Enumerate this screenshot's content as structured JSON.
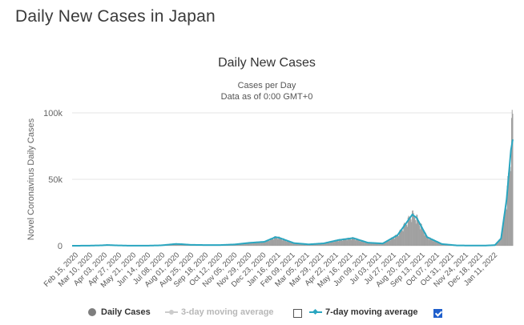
{
  "page": {
    "title": "Daily New Cases in Japan"
  },
  "chart_data": {
    "type": "bar",
    "title": "Daily New Cases",
    "subtitle_lines": [
      "Cases per Day",
      "Data as of 0:00 GMT+0"
    ],
    "ylabel": "Novel Coronavirus Daily Cases",
    "xlabel": "",
    "ylim": [
      0,
      100000
    ],
    "y_ticks": [
      0,
      50000,
      100000
    ],
    "y_tick_labels": [
      "0",
      "50k",
      "100k"
    ],
    "x_range": [
      "2020-02-15",
      "2022-01-30"
    ],
    "x_tick_labels": [
      "Feb 15, 2020",
      "Mar 10, 2020",
      "Apr 03, 2020",
      "Apr 27, 2020",
      "May 21, 2020",
      "Jun 14, 2020",
      "Jul 08, 2020",
      "Aug 01, 2020",
      "Aug 25, 2020",
      "Sep 18, 2020",
      "Oct 12, 2020",
      "Nov 05, 2020",
      "Nov 29, 2020",
      "Dec 23, 2020",
      "Jan 16, 2021",
      "Feb 09, 2021",
      "Mar 05, 2021",
      "Mar 29, 2021",
      "Apr 22, 2021",
      "May 16, 2021",
      "Jun 09, 2021",
      "Jul 03, 2021",
      "Jul 27, 2021",
      "Aug 20, 2021",
      "Sep 13, 2021",
      "Oct 07, 2021",
      "Oct 31, 2021",
      "Nov 24, 2021",
      "Dec 18, 2021",
      "Jan 11, 2022"
    ],
    "grid": true,
    "legend_position": "bottom",
    "legend": [
      {
        "label": "Daily Cases",
        "enabled": true
      },
      {
        "label": "3-day moving average",
        "enabled": false
      },
      {
        "label": "7-day moving average",
        "enabled": true
      }
    ],
    "colors": {
      "bars": "#a0a0a0",
      "ma7": "#2aa6c0",
      "ma3": "#cccccc",
      "grid": "#e6e6e6"
    },
    "series": [
      {
        "name": "Daily Cases",
        "type": "bar"
      },
      {
        "name": "7-day moving average",
        "type": "line",
        "points": [
          [
            "2020-02-15",
            10
          ],
          [
            "2020-03-10",
            60
          ],
          [
            "2020-04-03",
            300
          ],
          [
            "2020-04-12",
            580
          ],
          [
            "2020-04-27",
            280
          ],
          [
            "2020-05-21",
            40
          ],
          [
            "2020-06-14",
            60
          ],
          [
            "2020-07-08",
            300
          ],
          [
            "2020-08-01",
            1350
          ],
          [
            "2020-08-10",
            1200
          ],
          [
            "2020-08-25",
            700
          ],
          [
            "2020-09-18",
            530
          ],
          [
            "2020-10-12",
            540
          ],
          [
            "2020-11-05",
            1000
          ],
          [
            "2020-11-29",
            2200
          ],
          [
            "2020-12-23",
            3000
          ],
          [
            "2021-01-10",
            6500
          ],
          [
            "2021-01-16",
            6000
          ],
          [
            "2021-02-09",
            2000
          ],
          [
            "2021-03-05",
            1050
          ],
          [
            "2021-03-29",
            1800
          ],
          [
            "2021-04-22",
            4300
          ],
          [
            "2021-05-16",
            5800
          ],
          [
            "2021-06-09",
            2300
          ],
          [
            "2021-07-03",
            1700
          ],
          [
            "2021-07-27",
            8000
          ],
          [
            "2021-08-10",
            17000
          ],
          [
            "2021-08-20",
            23500
          ],
          [
            "2021-08-27",
            21000
          ],
          [
            "2021-09-13",
            6500
          ],
          [
            "2021-10-07",
            1300
          ],
          [
            "2021-10-31",
            260
          ],
          [
            "2021-11-24",
            120
          ],
          [
            "2021-12-18",
            180
          ],
          [
            "2022-01-01",
            500
          ],
          [
            "2022-01-11",
            5500
          ],
          [
            "2022-01-20",
            35000
          ],
          [
            "2022-01-27",
            72000
          ],
          [
            "2022-01-30",
            80000
          ]
        ]
      }
    ]
  }
}
